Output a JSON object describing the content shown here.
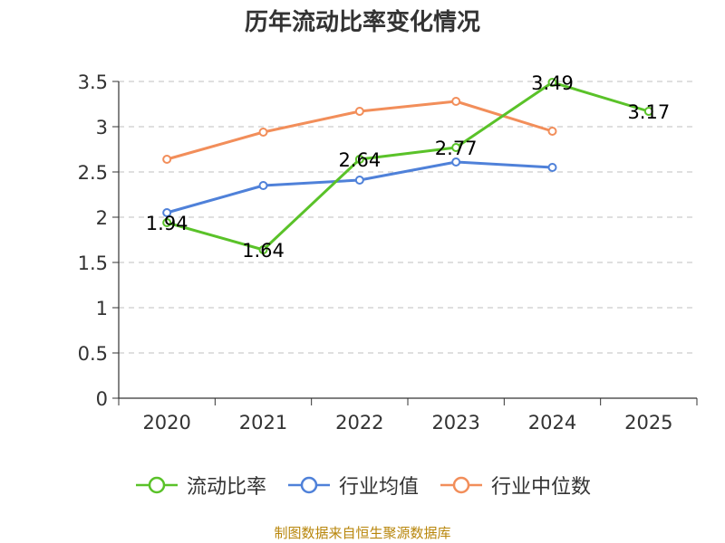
{
  "chart_data": {
    "type": "line",
    "title": "历年流动比率变化情况",
    "categories": [
      "2020",
      "2021",
      "2022",
      "2023",
      "2024",
      "2025"
    ],
    "y_ticks": [
      "0",
      "0.5",
      "1",
      "1.5",
      "2",
      "2.5",
      "3",
      "3.5"
    ],
    "ylim": [
      0,
      3.5
    ],
    "grid": "dashed horizontal",
    "legend_position": "bottom",
    "series": [
      {
        "name": "流动比率",
        "color": "#5ac229",
        "values": [
          1.94,
          1.64,
          2.64,
          2.77,
          3.49,
          3.17
        ],
        "labels": [
          "1.94",
          "1.64",
          "2.64",
          "2.77",
          "3.49",
          "3.17"
        ]
      },
      {
        "name": "行业均值",
        "color": "#4f81d9",
        "values": [
          2.05,
          2.35,
          2.41,
          2.61,
          2.55,
          null
        ]
      },
      {
        "name": "行业中位数",
        "color": "#f28e5a",
        "values": [
          2.64,
          2.94,
          3.17,
          3.28,
          2.95,
          null
        ]
      }
    ]
  },
  "source_note": "制图数据来自恒生聚源数据库"
}
